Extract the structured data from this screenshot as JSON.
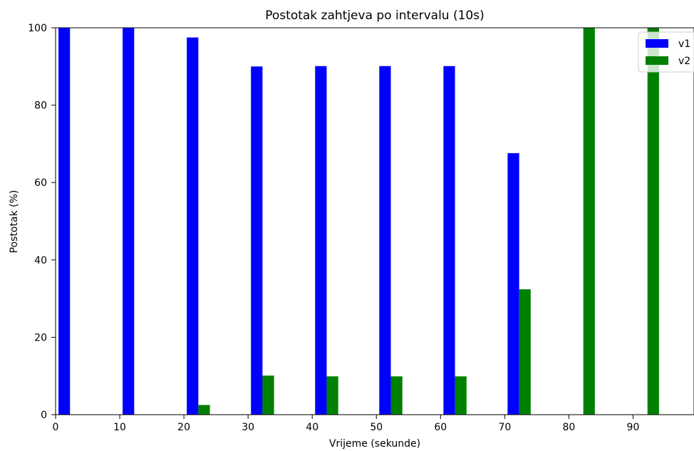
{
  "chart_data": {
    "type": "bar",
    "title": "Postotak zahtjeva po intervalu (10s)",
    "xlabel": "Vrijeme (sekunde)",
    "ylabel": "Postotak (%)",
    "x": [
      0,
      10,
      20,
      30,
      40,
      50,
      60,
      70,
      80,
      90
    ],
    "bar_width": 1.8,
    "series": [
      {
        "name": "v1",
        "color": "#0000ff",
        "offset": 1.35,
        "values": [
          100,
          100,
          97.5,
          90,
          90.1,
          90.1,
          90.1,
          67.6,
          0,
          0
        ]
      },
      {
        "name": "v2",
        "color": "#008000",
        "offset": 3.15,
        "values": [
          0,
          0,
          2.5,
          10.1,
          9.9,
          9.9,
          9.9,
          32.4,
          100,
          100
        ]
      }
    ],
    "xlim": [
      0,
      99.5
    ],
    "ylim": [
      0,
      100
    ],
    "xticks": [
      0,
      10,
      20,
      30,
      40,
      50,
      60,
      70,
      80,
      90
    ],
    "yticks": [
      0,
      20,
      40,
      60,
      80,
      100
    ],
    "grid": false,
    "legend": {
      "placement": "top-right",
      "entries": [
        "v1",
        "v2"
      ]
    }
  }
}
